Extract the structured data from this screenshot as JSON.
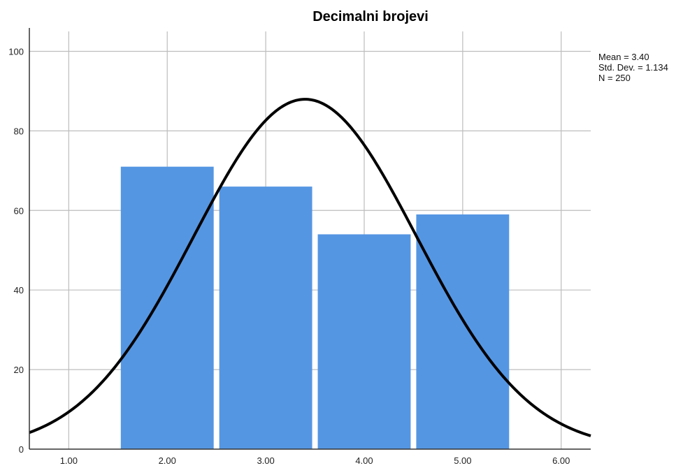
{
  "chart_data": {
    "type": "bar",
    "subtype": "histogram-with-normal-curve",
    "title": "Decimalni brojevi",
    "xlabel": "",
    "ylabel": "",
    "bins": [
      {
        "center": 2.0,
        "count": 71
      },
      {
        "center": 3.0,
        "count": 66
      },
      {
        "center": 4.0,
        "count": 54
      },
      {
        "center": 5.0,
        "count": 59
      }
    ],
    "bin_width": 1.0,
    "x_ticks": [
      "1.00",
      "2.00",
      "3.00",
      "4.00",
      "5.00",
      "6.00"
    ],
    "y_ticks": [
      "0",
      "20",
      "40",
      "60",
      "80",
      "100"
    ],
    "xlim": [
      0.6,
      6.3
    ],
    "ylim": [
      0,
      105
    ],
    "grid": true,
    "colors": {
      "bar": "#5596e3",
      "curve": "#000000",
      "grid": "#bdbdbd"
    },
    "normal_curve": {
      "mean": 3.4,
      "sd": 1.134,
      "n": 250
    },
    "stats_box": {
      "position": "top-right",
      "lines": [
        "Mean = 3.40",
        "Std. Dev. = 1.134",
        "N = 250"
      ]
    }
  }
}
